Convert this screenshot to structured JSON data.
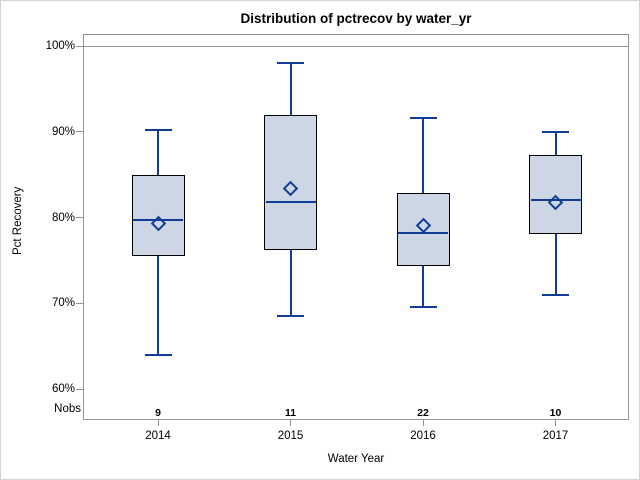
{
  "window": {
    "background": "#ffffff",
    "border_color": "#d4d4d4"
  },
  "chart_data": {
    "type": "box",
    "title": "Distribution of pctrecov by water_yr",
    "xlabel": "Water Year",
    "ylabel": "Pct Recovery",
    "categories": [
      "2014",
      "2015",
      "2016",
      "2017"
    ],
    "y_tick_labels": [
      "100%",
      "90%",
      "80%",
      "70%",
      "60%"
    ],
    "y_tick_values": [
      100,
      90,
      80,
      70,
      60
    ],
    "ylim": [
      56.4,
      101.4
    ],
    "grid": false,
    "legend": "none",
    "reference_line_at": 100,
    "nobs_label": "Nobs",
    "nobs": [
      9,
      11,
      22,
      10
    ],
    "series": [
      {
        "category": "2014",
        "n": 9,
        "whisker_low": 64.0,
        "q1": 75.5,
        "median": 79.7,
        "mean": 79.3,
        "q3": 85.0,
        "whisker_high": 90.2
      },
      {
        "category": "2015",
        "n": 11,
        "whisker_low": 68.5,
        "q1": 76.2,
        "median": 81.8,
        "mean": 83.4,
        "q3": 92.0,
        "whisker_high": 98.0
      },
      {
        "category": "2016",
        "n": 22,
        "whisker_low": 69.6,
        "q1": 74.4,
        "median": 78.2,
        "mean": 79.1,
        "q3": 82.9,
        "whisker_high": 91.6
      },
      {
        "category": "2017",
        "n": 10,
        "whisker_low": 71.0,
        "q1": 78.1,
        "median": 82.0,
        "mean": 81.8,
        "q3": 87.3,
        "whisker_high": 90.0
      }
    ],
    "colors": {
      "box_fill": "#ccd6e4",
      "box_border": "#000000",
      "line": "#103c96",
      "frame": "#949494",
      "text": "#000000"
    }
  }
}
